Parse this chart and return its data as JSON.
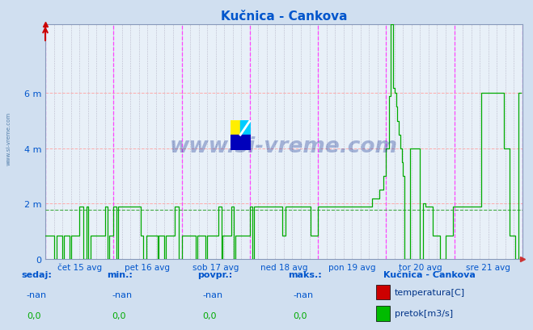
{
  "title": "Kučnica - Cankova",
  "title_color": "#0055cc",
  "bg_color": "#d0dff0",
  "plot_bg_color": "#e8f0f8",
  "grid_color_h": "#ffaaaa",
  "grid_color_v": "#bbbbcc",
  "vline_color": "#ff44ff",
  "avg_line_color": "#44aa44",
  "avg_line_value": 1.78,
  "ymax": 8.5,
  "yticks": [
    0,
    2,
    4,
    6
  ],
  "ytick_labels": [
    "0",
    "2 m",
    "4 m",
    "6 m"
  ],
  "x_labels": [
    "čet 15 avg",
    "pet 16 avg",
    "sob 17 avg",
    "ned 18 avg",
    "pon 19 avg",
    "tor 20 avg",
    "sre 21 avg"
  ],
  "n_days": 7,
  "pts_per_day": 48,
  "watermark_text": "www.si-vreme.com",
  "legend_title": "Kučnica - Cankova",
  "legend_items": [
    {
      "label": "temperatura[C]",
      "color": "#cc0000"
    },
    {
      "label": "pretok[m3/s]",
      "color": "#00bb00"
    }
  ],
  "stats_labels": [
    "sedaj:",
    "min.:",
    "povpr.:",
    "maks.:"
  ],
  "stats_temp": [
    "-nan",
    "-nan",
    "-nan",
    "-nan"
  ],
  "stats_flow": [
    "0,0",
    "0,0",
    "0,0",
    "0,0"
  ]
}
